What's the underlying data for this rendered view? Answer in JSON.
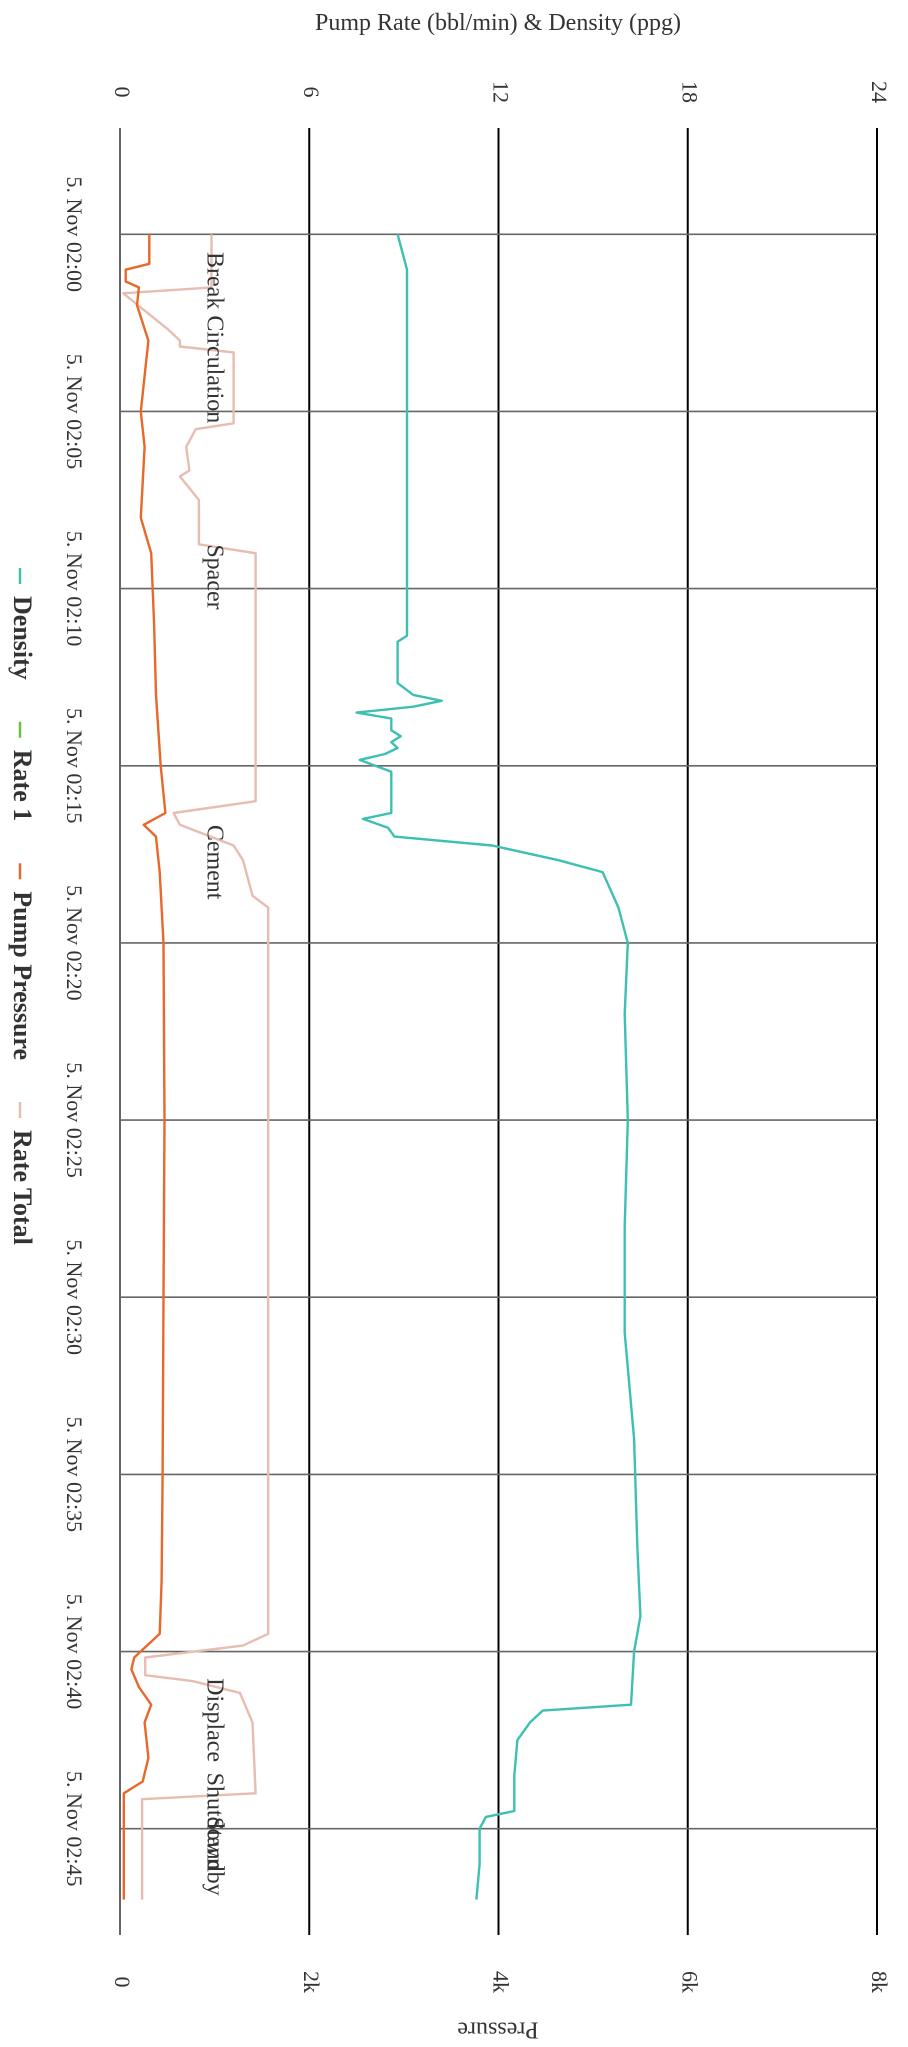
{
  "chart_data": {
    "type": "line",
    "orientation": "rotated-90-clockwise",
    "x_axis": {
      "label": "",
      "ticks": [
        "5. Nov 02:00",
        "5. Nov 02:05",
        "5. Nov 02:10",
        "5. Nov 02:15",
        "5. Nov 02:20",
        "5. Nov 02:25",
        "5. Nov 02:30",
        "5. Nov 02:35",
        "5. Nov 02:40",
        "5. Nov 02:45"
      ],
      "range": [
        "5. Nov 01:57",
        "5. Nov 02:48"
      ]
    },
    "y_axes": [
      {
        "id": "rate_density",
        "label": "Pump Rate (bbl/min) & Density (ppg)",
        "ticks": [
          "0",
          "6",
          "12",
          "18",
          "24"
        ],
        "range": [
          0,
          24
        ]
      },
      {
        "id": "pressure",
        "label": "Pressure",
        "ticks": [
          "0",
          "2k",
          "4k",
          "6k",
          "8k"
        ],
        "range": [
          0,
          8000
        ]
      }
    ],
    "annotations": [
      {
        "text": "Break Circulation",
        "time": "02:00:30"
      },
      {
        "text": "Spacer",
        "time": "02:08:45"
      },
      {
        "text": "Cement",
        "time": "02:16:40"
      },
      {
        "text": "Displace",
        "time": "02:40:45"
      },
      {
        "text": "Shutdown",
        "time": "02:43:25"
      },
      {
        "text": "Standby",
        "time": "02:44:40"
      }
    ],
    "legend": {
      "position": "left",
      "items": [
        {
          "name": "Density",
          "color": "#3dbfb2"
        },
        {
          "name": "Rate 1",
          "color": "#6cbf45"
        },
        {
          "name": "Pump Pressure",
          "color": "#e8682a"
        },
        {
          "name": "Rate Total",
          "color": "#e6bdb0"
        }
      ]
    },
    "series": [
      {
        "name": "Density",
        "axis": "rate_density",
        "color": "#3dbfb2",
        "points": [
          [
            "02:00:00",
            8.8
          ],
          [
            "02:01:00",
            9.1
          ],
          [
            "02:05:00",
            9.1
          ],
          [
            "02:10:00",
            9.1
          ],
          [
            "02:11:20",
            9.1
          ],
          [
            "02:11:30",
            8.8
          ],
          [
            "02:12:40",
            8.8
          ],
          [
            "02:13:00",
            9.3
          ],
          [
            "02:13:10",
            10.2
          ],
          [
            "02:13:20",
            9.3
          ],
          [
            "02:13:30",
            7.5
          ],
          [
            "02:13:40",
            8.6
          ],
          [
            "02:14:00",
            8.6
          ],
          [
            "02:14:10",
            8.9
          ],
          [
            "02:14:20",
            8.6
          ],
          [
            "02:14:30",
            8.8
          ],
          [
            "02:14:40",
            8.4
          ],
          [
            "02:14:50",
            7.6
          ],
          [
            "02:15:10",
            8.6
          ],
          [
            "02:16:20",
            8.6
          ],
          [
            "02:16:30",
            7.7
          ],
          [
            "02:16:45",
            8.5
          ],
          [
            "02:17:00",
            8.7
          ],
          [
            "02:17:15",
            11.8
          ],
          [
            "02:17:40",
            13.9
          ],
          [
            "02:18:00",
            15.3
          ],
          [
            "02:19:00",
            15.8
          ],
          [
            "02:20:00",
            16.1
          ],
          [
            "02:22:00",
            16.0
          ],
          [
            "02:25:00",
            16.1
          ],
          [
            "02:28:00",
            16.0
          ],
          [
            "02:31:00",
            16.0
          ],
          [
            "02:34:00",
            16.3
          ],
          [
            "02:37:00",
            16.4
          ],
          [
            "02:39:00",
            16.5
          ],
          [
            "02:40:00",
            16.3
          ],
          [
            "02:41:30",
            16.2
          ],
          [
            "02:41:40",
            13.4
          ],
          [
            "02:42:00",
            13.0
          ],
          [
            "02:42:30",
            12.6
          ],
          [
            "02:43:30",
            12.5
          ],
          [
            "02:44:30",
            12.5
          ],
          [
            "02:44:40",
            11.6
          ],
          [
            "02:45:00",
            11.4
          ],
          [
            "02:46:00",
            11.4
          ],
          [
            "02:47:00",
            11.3
          ]
        ]
      },
      {
        "name": "Rate 1",
        "axis": "rate_density",
        "color": "#6cbf45",
        "points": []
      },
      {
        "name": "Pump Pressure",
        "axis": "pressure",
        "color": "#e8682a",
        "points": [
          [
            "02:00:00",
            310
          ],
          [
            "02:00:50",
            310
          ],
          [
            "02:01:00",
            60
          ],
          [
            "02:01:20",
            60
          ],
          [
            "02:01:30",
            200
          ],
          [
            "02:02:00",
            180
          ],
          [
            "02:03:00",
            300
          ],
          [
            "02:04:00",
            260
          ],
          [
            "02:05:00",
            220
          ],
          [
            "02:06:00",
            260
          ],
          [
            "02:07:00",
            240
          ],
          [
            "02:08:00",
            220
          ],
          [
            "02:09:00",
            330
          ],
          [
            "02:11:00",
            360
          ],
          [
            "02:13:00",
            380
          ],
          [
            "02:15:00",
            430
          ],
          [
            "02:16:20",
            480
          ],
          [
            "02:16:40",
            250
          ],
          [
            "02:17:00",
            380
          ],
          [
            "02:18:00",
            420
          ],
          [
            "02:20:00",
            460
          ],
          [
            "02:25:00",
            470
          ],
          [
            "02:30:00",
            460
          ],
          [
            "02:35:00",
            450
          ],
          [
            "02:38:00",
            440
          ],
          [
            "02:39:30",
            420
          ],
          [
            "02:40:10",
            150
          ],
          [
            "02:40:30",
            120
          ],
          [
            "02:41:00",
            200
          ],
          [
            "02:41:30",
            330
          ],
          [
            "02:42:00",
            260
          ],
          [
            "02:43:00",
            300
          ],
          [
            "02:43:40",
            240
          ],
          [
            "02:44:00",
            40
          ],
          [
            "02:47:00",
            40
          ]
        ]
      },
      {
        "name": "Rate Total",
        "axis": "rate_density",
        "color": "#e6bdb0",
        "points": [
          [
            "02:00:00",
            2.9
          ],
          [
            "02:01:30",
            2.9
          ],
          [
            "02:01:40",
            0.1
          ],
          [
            "02:02:40",
            1.5
          ],
          [
            "02:03:00",
            1.9
          ],
          [
            "02:03:10",
            1.9
          ],
          [
            "02:03:20",
            3.6
          ],
          [
            "02:05:20",
            3.6
          ],
          [
            "02:05:30",
            2.4
          ],
          [
            "02:06:00",
            2.1
          ],
          [
            "02:06:40",
            2.2
          ],
          [
            "02:06:50",
            1.9
          ],
          [
            "02:07:30",
            2.5
          ],
          [
            "02:08:45",
            2.5
          ],
          [
            "02:09:00",
            4.3
          ],
          [
            "02:16:00",
            4.3
          ],
          [
            "02:16:20",
            1.7
          ],
          [
            "02:16:40",
            1.9
          ],
          [
            "02:17:15",
            3.6
          ],
          [
            "02:17:40",
            3.9
          ],
          [
            "02:18:40",
            4.2
          ],
          [
            "02:19:00",
            4.7
          ],
          [
            "02:39:30",
            4.7
          ],
          [
            "02:39:50",
            3.9
          ],
          [
            "02:40:10",
            0.8
          ],
          [
            "02:40:40",
            0.8
          ],
          [
            "02:40:50",
            2.3
          ],
          [
            "02:41:10",
            3.8
          ],
          [
            "02:42:00",
            4.2
          ],
          [
            "02:44:00",
            4.3
          ],
          [
            "02:44:10",
            0.7
          ],
          [
            "02:47:00",
            0.7
          ]
        ]
      }
    ]
  }
}
